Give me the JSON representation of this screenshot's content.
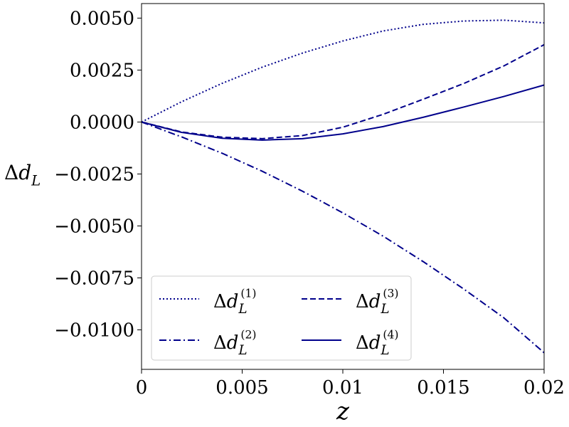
{
  "chart_data": {
    "type": "line",
    "xlabel": "z",
    "ylabel": "Δd_L",
    "xlim": [
      0,
      0.02
    ],
    "ylim": [
      -0.0119,
      0.0057
    ],
    "x_ticks": [
      0,
      0.005,
      0.01,
      0.015,
      0.02
    ],
    "x_tick_labels": [
      "0",
      "0.005",
      "0.01",
      "0.015",
      "0.02"
    ],
    "y_ticks": [
      0.005,
      0.0025,
      0.0,
      -0.0025,
      -0.005,
      -0.0075,
      -0.01
    ],
    "y_tick_labels": [
      "0.0050",
      "0.0025",
      "0.0000",
      "−0.0025",
      "−0.0050",
      "−0.0075",
      "−0.0100"
    ],
    "grid": false,
    "zero_line": true,
    "legend_position": "lower-left",
    "legend_columns": 2,
    "line_color": "#00008b",
    "series": [
      {
        "name": "Δd_L^(1)",
        "style": "dotted",
        "x": [
          0,
          0.002,
          0.004,
          0.006,
          0.008,
          0.01,
          0.012,
          0.014,
          0.016,
          0.018,
          0.02
        ],
        "y": [
          0,
          0.00098,
          0.00186,
          0.00264,
          0.00332,
          0.0039,
          0.00438,
          0.0047,
          0.00486,
          0.0049,
          0.00477
        ]
      },
      {
        "name": "Δd_L^(2)",
        "style": "dashdot",
        "x": [
          0,
          0.002,
          0.004,
          0.006,
          0.008,
          0.01,
          0.012,
          0.014,
          0.016,
          0.018,
          0.02
        ],
        "y": [
          0,
          -0.00072,
          -0.0015,
          -0.00237,
          -0.00333,
          -0.00437,
          -0.00549,
          -0.00672,
          -0.00803,
          -0.00942,
          -0.0111
        ]
      },
      {
        "name": "Δd_L^(3)",
        "style": "dashed",
        "x": [
          0,
          0.002,
          0.004,
          0.006,
          0.008,
          0.01,
          0.012,
          0.014,
          0.016,
          0.018,
          0.02
        ],
        "y": [
          0,
          -0.00048,
          -0.00073,
          -0.0008,
          -0.00065,
          -0.00025,
          0.00037,
          0.0011,
          0.00185,
          0.0027,
          0.00372
        ]
      },
      {
        "name": "Δd_L^(4)",
        "style": "solid",
        "x": [
          0,
          0.002,
          0.004,
          0.006,
          0.008,
          0.01,
          0.012,
          0.014,
          0.016,
          0.018,
          0.02
        ],
        "y": [
          0,
          -0.0005,
          -0.00078,
          -0.00087,
          -0.0008,
          -0.00057,
          -0.00022,
          0.00023,
          0.00072,
          0.00123,
          0.00178
        ]
      }
    ]
  }
}
